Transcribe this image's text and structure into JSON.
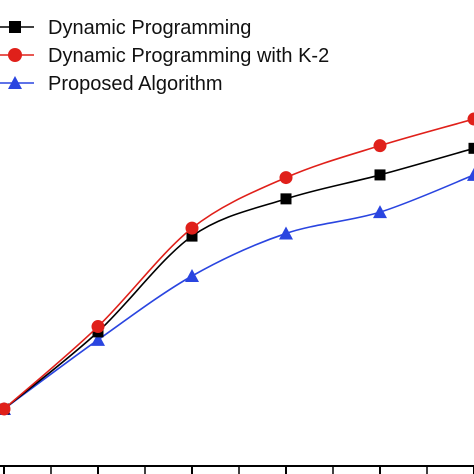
{
  "chart_data": {
    "type": "line",
    "title": "",
    "xlabel": "",
    "ylabel": "",
    "legend_position": "top-left",
    "grid": false,
    "x": [
      1,
      2,
      3,
      4,
      5,
      6
    ],
    "xlim": [
      1,
      6
    ],
    "ylim": [
      0,
      100
    ],
    "series": [
      {
        "name": "Dynamic Programming",
        "color": "#000000",
        "marker": "square",
        "values": [
          0,
          29,
          65,
          79,
          88,
          98
        ]
      },
      {
        "name": "Dynamic Programming with K-2",
        "color": "#e0201a",
        "marker": "circle",
        "values": [
          0,
          31,
          68,
          87,
          99,
          109
        ]
      },
      {
        "name": "Proposed Algorithm",
        "color": "#2a45e0",
        "marker": "triangle",
        "values": [
          0,
          26,
          50,
          66,
          74,
          88
        ]
      }
    ]
  }
}
